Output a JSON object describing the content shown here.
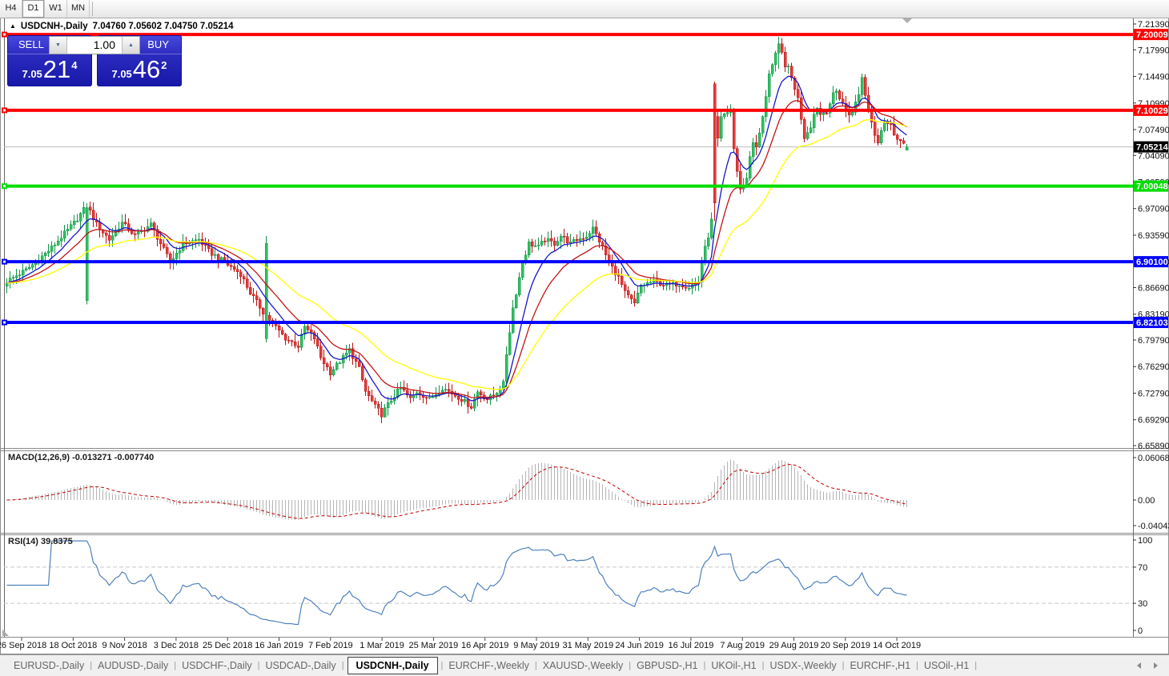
{
  "window": {
    "toolbar": {
      "buttons": [
        "H4",
        "D1",
        "W1",
        "MN"
      ],
      "active": "D1"
    }
  },
  "icons": {
    "title_marker": "▲",
    "spinner_up": "▲",
    "spinner_down": "▼"
  },
  "chart": {
    "title": {
      "symbol": "USDCNH-,Daily",
      "ohlc": "7.04760 7.05602 7.04750 7.05214"
    },
    "trade_panel": {
      "sell_label": "SELL",
      "buy_label": "BUY",
      "volume": "1.00",
      "sell_small": "7.05",
      "sell_big": "21",
      "sell_sup": "4",
      "buy_small": "7.05",
      "buy_big": "46",
      "buy_sup": "2"
    },
    "price_axis": {
      "ticks": [
        "7.21390",
        "7.17990",
        "7.14490",
        "7.10990",
        "7.07490",
        "7.04090",
        "7.00590",
        "6.97090",
        "6.93590",
        "6.90090",
        "6.86690",
        "6.83190",
        "6.79790",
        "6.76290",
        "6.72790",
        "6.69290",
        "6.65890"
      ]
    },
    "current": {
      "price": 7.05214,
      "label": "7.05214",
      "badge_color": "#000000"
    },
    "hlines": [
      {
        "price": 7.20009,
        "label": "7.20009",
        "color": "#FF0000"
      },
      {
        "price": 7.10029,
        "label": "7.10029",
        "color": "#FF0000"
      },
      {
        "price": 7.00048,
        "label": "7.00048",
        "color": "#00DD00"
      },
      {
        "price": 6.901,
        "label": "6.90100",
        "color": "#0000FF"
      },
      {
        "price": 6.82103,
        "label": "6.82103",
        "color": "#0000FF"
      }
    ],
    "macd_label": "MACD(12,26,9) -0.013271 -0.007740",
    "rsi_label": "RSI(14) 39.8375",
    "date_axis": [
      "26 Sep 2018",
      "18 Oct 2018",
      "9 Nov 2018",
      "3 Dec 2018",
      "25 Dec 2018",
      "16 Jan 2019",
      "7 Feb 2019",
      "1 Mar 2019",
      "25 Mar 2019",
      "16 Apr 2019",
      "9 May 2019",
      "31 May 2019",
      "24 Jun 2019",
      "16 Jul 2019",
      "7 Aug 2019",
      "29 Aug 2019",
      "20 Sep 2019",
      "14 Oct 2019"
    ],
    "chart_data": {
      "type": "candlestick",
      "symbol": "USDCNH",
      "timeframe": "Daily",
      "ylim": [
        6.6589,
        7.2139
      ],
      "candle_count": 282,
      "noise": 0.007,
      "x_labels": [
        "26 Sep 2018",
        "18 Oct 2018",
        "9 Nov 2018",
        "3 Dec 2018",
        "25 Dec 2018",
        "16 Jan 2019",
        "7 Feb 2019",
        "1 Mar 2019",
        "25 Mar 2019",
        "16 Apr 2019",
        "9 May 2019",
        "31 May 2019",
        "24 Jun 2019",
        "16 Jul 2019",
        "7 Aug 2019",
        "29 Aug 2019",
        "20 Sep 2019",
        "14 Oct 2019"
      ],
      "close_waypoints": [
        [
          0,
          6.875
        ],
        [
          6,
          6.89
        ],
        [
          13,
          6.915
        ],
        [
          21,
          6.952
        ],
        [
          25,
          6.975
        ],
        [
          28,
          6.95
        ],
        [
          32,
          6.93
        ],
        [
          36,
          6.952
        ],
        [
          40,
          6.935
        ],
        [
          45,
          6.95
        ],
        [
          48,
          6.925
        ],
        [
          51,
          6.9
        ],
        [
          55,
          6.925
        ],
        [
          60,
          6.93
        ],
        [
          63,
          6.915
        ],
        [
          68,
          6.9
        ],
        [
          73,
          6.885
        ],
        [
          76,
          6.86
        ],
        [
          80,
          6.835
        ],
        [
          83,
          6.82
        ],
        [
          87,
          6.8
        ],
        [
          91,
          6.79
        ],
        [
          93,
          6.815
        ],
        [
          96,
          6.8
        ],
        [
          98,
          6.775
        ],
        [
          101,
          6.755
        ],
        [
          105,
          6.775
        ],
        [
          107,
          6.785
        ],
        [
          110,
          6.76
        ],
        [
          112,
          6.73
        ],
        [
          115,
          6.71
        ],
        [
          117,
          6.7
        ],
        [
          121,
          6.725
        ],
        [
          123,
          6.735
        ],
        [
          126,
          6.72
        ],
        [
          128,
          6.73
        ],
        [
          132,
          6.72
        ],
        [
          136,
          6.735
        ],
        [
          140,
          6.725
        ],
        [
          142,
          6.72
        ],
        [
          145,
          6.71
        ],
        [
          147,
          6.73
        ],
        [
          150,
          6.72
        ],
        [
          152,
          6.725
        ],
        [
          155,
          6.74
        ],
        [
          156,
          6.78
        ],
        [
          158,
          6.84
        ],
        [
          161,
          6.9
        ],
        [
          163,
          6.925
        ],
        [
          166,
          6.92
        ],
        [
          168,
          6.93
        ],
        [
          171,
          6.925
        ],
        [
          173,
          6.935
        ],
        [
          176,
          6.925
        ],
        [
          178,
          6.93
        ],
        [
          181,
          6.935
        ],
        [
          183,
          6.945
        ],
        [
          186,
          6.92
        ],
        [
          188,
          6.9
        ],
        [
          191,
          6.88
        ],
        [
          193,
          6.86
        ],
        [
          196,
          6.845
        ],
        [
          198,
          6.87
        ],
        [
          202,
          6.875
        ],
        [
          206,
          6.87
        ],
        [
          210,
          6.872
        ],
        [
          213,
          6.868
        ],
        [
          216,
          6.875
        ],
        [
          217,
          6.902
        ],
        [
          219,
          6.935
        ],
        [
          220,
          6.955
        ],
        [
          221,
          7.09
        ],
        [
          222,
          7.06
        ],
        [
          223,
          7.09
        ],
        [
          226,
          7.1
        ],
        [
          227,
          7.05
        ],
        [
          228,
          7.02
        ],
        [
          229,
          6.995
        ],
        [
          231,
          7.01
        ],
        [
          232,
          7.04
        ],
        [
          233,
          7.06
        ],
        [
          234,
          7.05
        ],
        [
          236,
          7.09
        ],
        [
          237,
          7.12
        ],
        [
          238,
          7.15
        ],
        [
          239,
          7.16
        ],
        [
          241,
          7.185
        ],
        [
          242,
          7.175
        ],
        [
          243,
          7.16
        ],
        [
          244,
          7.155
        ],
        [
          246,
          7.13
        ],
        [
          247,
          7.115
        ],
        [
          248,
          7.09
        ],
        [
          249,
          7.065
        ],
        [
          251,
          7.08
        ],
        [
          252,
          7.095
        ],
        [
          253,
          7.105
        ],
        [
          254,
          7.095
        ],
        [
          256,
          7.1
        ],
        [
          257,
          7.11
        ],
        [
          258,
          7.12
        ],
        [
          259,
          7.125
        ],
        [
          261,
          7.11
        ],
        [
          262,
          7.1
        ],
        [
          263,
          7.095
        ],
        [
          264,
          7.1
        ],
        [
          266,
          7.12
        ],
        [
          267,
          7.145
        ],
        [
          268,
          7.12
        ],
        [
          269,
          7.1
        ],
        [
          271,
          7.07
        ],
        [
          272,
          7.06
        ],
        [
          273,
          7.075
        ],
        [
          274,
          7.085
        ],
        [
          276,
          7.08
        ],
        [
          277,
          7.07
        ],
        [
          278,
          7.065
        ],
        [
          279,
          7.06
        ],
        [
          281,
          7.052
        ]
      ],
      "candle_overrides": [
        {
          "i": 25,
          "o": 6.85,
          "h": 6.978,
          "l": 6.845,
          "c": 6.972
        },
        {
          "i": 81,
          "o": 6.8,
          "h": 6.935,
          "l": 6.795,
          "c": 6.925
        },
        {
          "i": 221,
          "o": 7.135,
          "h": 7.138,
          "l": 6.955,
          "c": 6.978
        },
        {
          "i": 241,
          "h": 7.197,
          "l": 7.155
        },
        {
          "i": 281,
          "o": 7.0476,
          "h": 7.05602,
          "l": 7.0475,
          "c": 7.05214
        }
      ],
      "moving_averages": [
        {
          "name": "fast",
          "period": 9,
          "color": "#1717C8"
        },
        {
          "name": "medium",
          "period": 18,
          "color": "#C41414"
        },
        {
          "name": "slow",
          "period": 40,
          "color": "#FFFF00"
        }
      ],
      "indicators": {
        "macd": {
          "params": "12,26,9",
          "value": -0.013271,
          "signal": -0.00774,
          "axis_max": 0.060687,
          "axis_labels": [
            "0.060687",
            "0.00",
            "-0.040432"
          ],
          "histogram_color": "#B4B4B4",
          "signal_color": "#C00000"
        },
        "rsi": {
          "period": 14,
          "value": 39.8375,
          "levels": [
            70,
            30
          ],
          "axis_labels": [
            "100",
            "70",
            "30",
            "0"
          ],
          "line_color": "#4F81BD"
        }
      },
      "colors": {
        "up": "#30BF62",
        "up_border": "#14944A",
        "down": "#E43B3B",
        "down_border": "#B51414"
      }
    }
  },
  "tabs": {
    "items": [
      "EURUSD-,Daily",
      "AUDUSD-,Daily",
      "USDCHF-,Daily",
      "USDCAD-,Daily",
      "USDCNH-,Daily",
      "EURCHF-,Weekly",
      "XAUUSD-,Weekly",
      "GBPUSD-,H1",
      "UKOil-,H1",
      "USDX-,Weekly",
      "EURCHF-,H1",
      "USOil-,H1"
    ],
    "active_index": 4
  }
}
